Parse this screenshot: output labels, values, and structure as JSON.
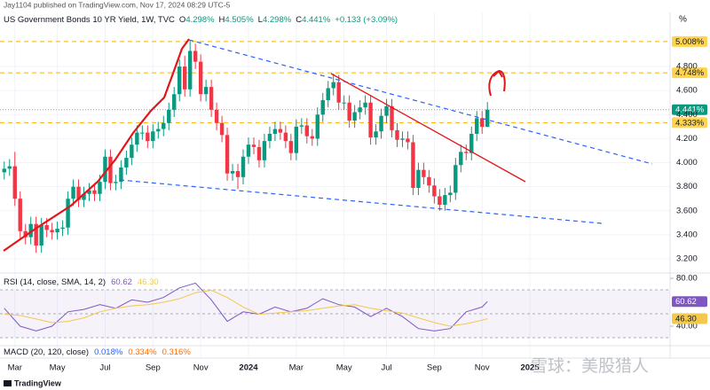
{
  "chart_data": [
    {
      "type": "candlestick",
      "publisher": "Jay1104 published on TradingView.com, Nov 17, 2024 08:29 UTC-5",
      "title": "US Government Bonds 10 YR Yield, 1W, TVC",
      "legend": [
        {
          "label": "O",
          "value": "4.298%"
        },
        {
          "label": "H",
          "value": "4.505%"
        },
        {
          "label": "L",
          "value": "4.298%"
        },
        {
          "label": "C",
          "value": "4.441%"
        },
        {
          "label": "",
          "value": "+0.133 (+3.09%)"
        }
      ],
      "unit": "%",
      "up_color": "#089981",
      "down_color": "#f23645",
      "xlim": [
        -0.8,
        125.4
      ],
      "xticks": [
        {
          "value": 2,
          "label": "Mar"
        },
        {
          "value": 10,
          "label": "May"
        },
        {
          "value": 19,
          "label": "Jul"
        },
        {
          "value": 28,
          "label": "Sep"
        },
        {
          "value": 37,
          "label": "Nov"
        },
        {
          "value": 46,
          "label": "2024"
        },
        {
          "value": 55,
          "label": "Mar"
        },
        {
          "value": 64,
          "label": "May"
        },
        {
          "value": 72,
          "label": "Jul"
        },
        {
          "value": 81,
          "label": "Sep"
        },
        {
          "value": 90,
          "label": "Nov"
        },
        {
          "value": 99,
          "label": "2025"
        }
      ],
      "ylim": [
        3.104,
        5.243
      ],
      "yticks": [
        {
          "value": 3.2,
          "label": "3.200"
        },
        {
          "value": 3.4,
          "label": "3.400"
        },
        {
          "value": 3.6,
          "label": "3.600"
        },
        {
          "value": 3.8,
          "label": "3.800"
        },
        {
          "value": 4.0,
          "label": "4.000"
        },
        {
          "value": 4.2,
          "label": "4.200"
        },
        {
          "value": 4.4,
          "label": "4.400"
        },
        {
          "value": 4.6,
          "label": "4.600"
        },
        {
          "value": 4.8,
          "label": "4.800"
        }
      ],
      "grid": true,
      "levels": [
        {
          "value": 5.008,
          "label": "5.008%",
          "color": "#ffd54f",
          "line": "#f5b301"
        },
        {
          "value": 4.748,
          "label": "4.748%",
          "color": "#ffd54f",
          "line": "#f5b301"
        },
        {
          "value": 4.441,
          "label": "4.441%",
          "color": "#089981",
          "line": "#9598a1"
        },
        {
          "value": 4.333,
          "label": "4.333%",
          "color": "#ffd54f",
          "line": "#f5b301"
        }
      ],
      "open": [
        3.92,
        3.95,
        3.97,
        3.7,
        3.43,
        3.38,
        3.49,
        3.31,
        3.48,
        3.44,
        3.42,
        3.45,
        3.46,
        3.7,
        3.8,
        3.69,
        3.74,
        3.77,
        3.74,
        3.84,
        4.05,
        3.83,
        3.84,
        3.96,
        4.04,
        4.15,
        4.25,
        4.25,
        4.18,
        4.26,
        4.28,
        4.33,
        4.44,
        4.57,
        4.8,
        4.61,
        4.93,
        4.84,
        4.57,
        4.63,
        4.44,
        4.33,
        4.23,
        3.91,
        3.93,
        3.88,
        4.05,
        4.15,
        4.13,
        4.02,
        4.18,
        4.24,
        4.28,
        4.25,
        4.18,
        4.08,
        4.3,
        4.31,
        4.22,
        4.2,
        4.4,
        4.52,
        4.62,
        4.67,
        4.5,
        4.5,
        4.35,
        4.42,
        4.46,
        4.5,
        4.21,
        4.26,
        4.39,
        4.47,
        4.27,
        4.19,
        4.2,
        4.17,
        3.79,
        3.94,
        3.88,
        3.81,
        3.72,
        3.65,
        3.73,
        3.75,
        3.98,
        4.09,
        4.08,
        4.24,
        4.37,
        4.298
      ],
      "high": [
        4.01,
        4.03,
        4.09,
        3.76,
        3.49,
        3.55,
        3.55,
        3.54,
        3.54,
        3.5,
        3.51,
        3.52,
        3.76,
        3.86,
        3.86,
        3.8,
        3.83,
        3.83,
        3.9,
        4.11,
        4.11,
        3.9,
        4.02,
        4.1,
        4.21,
        4.31,
        4.31,
        4.31,
        4.32,
        4.34,
        4.39,
        4.5,
        4.63,
        4.86,
        4.89,
        5.02,
        4.99,
        4.9,
        4.69,
        4.69,
        4.5,
        4.39,
        4.29,
        3.99,
        3.99,
        4.11,
        4.21,
        4.21,
        4.19,
        4.24,
        4.3,
        4.34,
        4.34,
        4.31,
        4.24,
        4.36,
        4.37,
        4.37,
        4.28,
        4.46,
        4.58,
        4.68,
        4.74,
        4.73,
        4.56,
        4.56,
        4.48,
        4.52,
        4.56,
        4.56,
        4.32,
        4.45,
        4.53,
        4.53,
        4.33,
        4.26,
        4.26,
        4.23,
        4.0,
        4.0,
        3.94,
        3.87,
        3.78,
        3.79,
        3.81,
        4.04,
        4.15,
        4.15,
        4.3,
        4.43,
        4.43,
        4.505
      ],
      "low": [
        3.86,
        3.89,
        3.64,
        3.37,
        3.32,
        3.32,
        3.25,
        3.25,
        3.38,
        3.36,
        3.36,
        3.39,
        3.4,
        3.64,
        3.63,
        3.63,
        3.68,
        3.68,
        3.68,
        3.78,
        3.77,
        3.77,
        3.78,
        3.9,
        3.98,
        4.09,
        4.19,
        4.12,
        4.12,
        4.2,
        4.22,
        4.27,
        4.38,
        4.51,
        4.55,
        4.55,
        4.78,
        4.51,
        4.51,
        4.38,
        4.27,
        4.17,
        3.85,
        3.85,
        3.78,
        3.82,
        3.99,
        4.07,
        3.96,
        3.96,
        4.12,
        4.18,
        4.19,
        4.12,
        4.02,
        4.02,
        4.24,
        4.16,
        4.14,
        4.14,
        4.34,
        4.46,
        4.56,
        4.44,
        4.44,
        4.29,
        4.29,
        4.36,
        4.4,
        4.15,
        4.15,
        4.2,
        4.33,
        4.21,
        4.13,
        4.13,
        4.11,
        3.73,
        3.73,
        3.82,
        3.75,
        3.66,
        3.6,
        3.6,
        3.67,
        3.69,
        3.92,
        4.02,
        4.02,
        4.18,
        4.24,
        4.298
      ],
      "close": [
        3.95,
        3.97,
        3.7,
        3.43,
        3.38,
        3.49,
        3.31,
        3.48,
        3.44,
        3.42,
        3.45,
        3.46,
        3.7,
        3.8,
        3.69,
        3.74,
        3.77,
        3.74,
        3.84,
        4.05,
        3.83,
        3.84,
        3.96,
        4.04,
        4.15,
        4.25,
        4.25,
        4.18,
        4.26,
        4.28,
        4.33,
        4.44,
        4.57,
        4.8,
        4.61,
        4.93,
        4.84,
        4.57,
        4.63,
        4.44,
        4.33,
        4.23,
        3.91,
        3.93,
        3.88,
        4.05,
        4.15,
        4.13,
        4.02,
        4.18,
        4.24,
        4.28,
        4.25,
        4.18,
        4.08,
        4.3,
        4.31,
        4.22,
        4.2,
        4.4,
        4.52,
        4.62,
        4.67,
        4.5,
        4.5,
        4.35,
        4.42,
        4.46,
        4.5,
        4.21,
        4.26,
        4.39,
        4.47,
        4.27,
        4.19,
        4.2,
        4.17,
        3.79,
        3.94,
        3.88,
        3.81,
        3.72,
        3.65,
        3.73,
        3.75,
        3.98,
        4.09,
        4.08,
        4.24,
        4.37,
        4.298,
        4.441
      ],
      "watermark": "雪球：美股猎人",
      "brand": "TradingView"
    },
    {
      "type": "line",
      "title": "RSI (14, close, SMA, 14, 2)",
      "ylim": [
        23.7,
        83
      ],
      "yticks": [
        {
          "value": 80,
          "label": "80.00"
        },
        {
          "value": 40,
          "label": "40.00"
        }
      ],
      "series": [
        {
          "name": "60.62",
          "color": "#7e57c2",
          "x": [
            0,
            3,
            6,
            9,
            12,
            15,
            18,
            21,
            24,
            27,
            30,
            33,
            36,
            39,
            42,
            45,
            48,
            51,
            54,
            57,
            60,
            63,
            66,
            69,
            72,
            75,
            78,
            81,
            84,
            87,
            90,
            91
          ],
          "values": [
            55,
            40,
            36,
            40,
            52,
            54,
            58,
            55,
            62,
            60,
            64,
            72,
            76,
            62,
            44,
            52,
            50,
            56,
            52,
            55,
            63,
            58,
            56,
            48,
            55,
            48,
            38,
            36,
            38,
            52,
            56,
            60.62
          ]
        },
        {
          "name": "46.30",
          "color": "#f2c94c",
          "x": [
            0,
            3,
            6,
            9,
            12,
            15,
            18,
            21,
            24,
            27,
            30,
            33,
            36,
            39,
            42,
            45,
            48,
            51,
            54,
            57,
            60,
            63,
            66,
            69,
            72,
            75,
            78,
            81,
            84,
            87,
            90,
            91
          ],
          "values": [
            50,
            49,
            46,
            43,
            44,
            47,
            52,
            55,
            57,
            58,
            60,
            63,
            68,
            70,
            64,
            56,
            50,
            51,
            52,
            53,
            55,
            57,
            58,
            55,
            53,
            51,
            47,
            43,
            40,
            42,
            45,
            46.3
          ]
        }
      ]
    },
    {
      "type": "line",
      "title": "MACD (20, 120, close)",
      "legend": [
        {
          "value": "0.018%",
          "color": "#2962ff"
        },
        {
          "value": "0.334%",
          "color": "#ff6d00"
        },
        {
          "value": "0.316%",
          "color": "#ff6d00"
        }
      ]
    }
  ]
}
